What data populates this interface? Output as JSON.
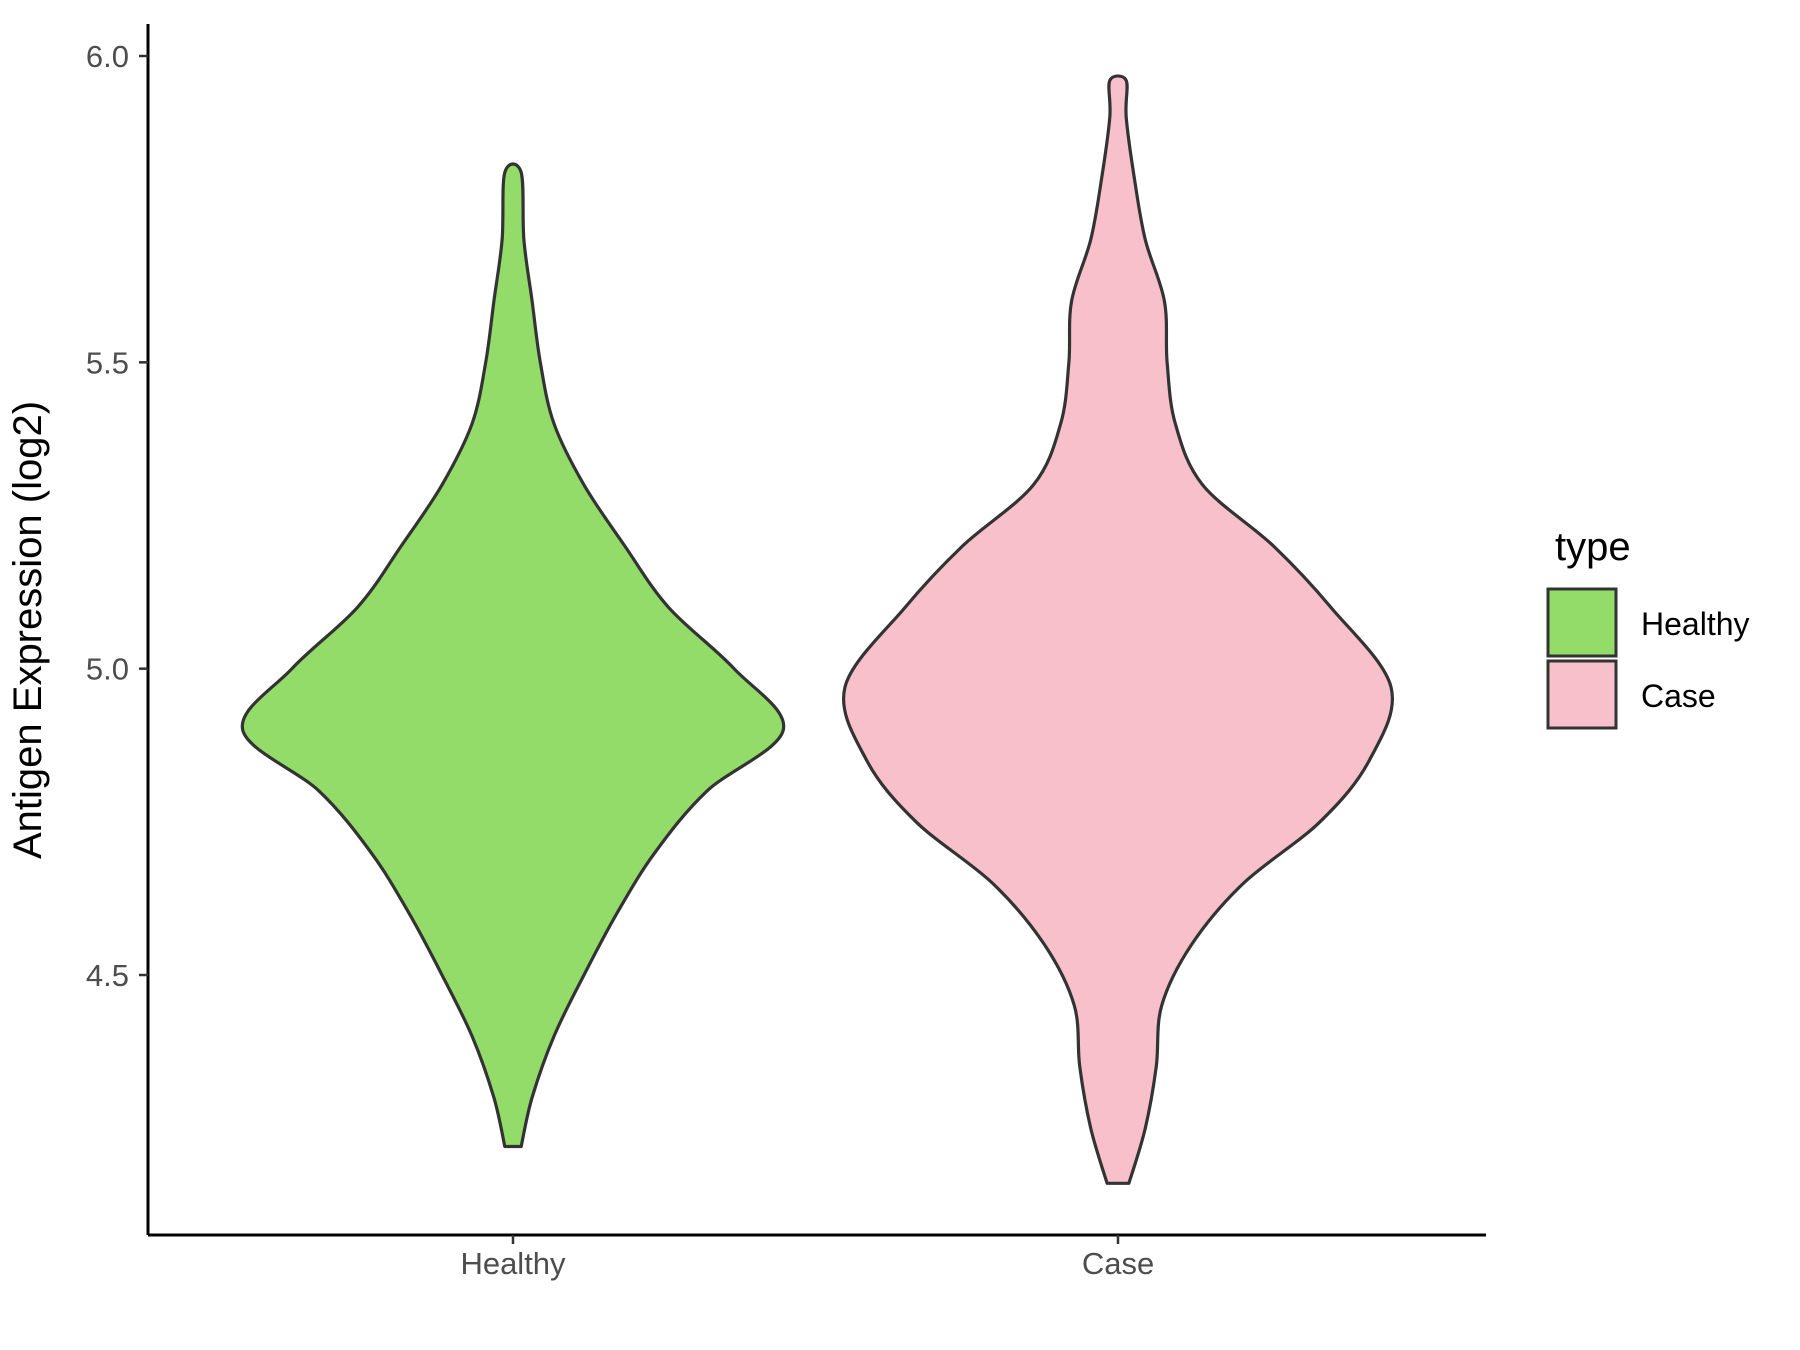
{
  "chart_data": {
    "type": "violin",
    "title": "",
    "xlabel": "",
    "ylabel": "Antigen Expression (log2)",
    "categories": [
      "Healthy",
      "Case"
    ],
    "yticks": [
      "4.5",
      "5.0",
      "5.5",
      "6.0"
    ],
    "ylim": [
      4.08,
      6.05
    ],
    "grid": false,
    "legend": {
      "title": "type",
      "position": "right",
      "entries": [
        "Healthy",
        "Case"
      ]
    },
    "series": [
      {
        "name": "Healthy",
        "color": "#93DC6A",
        "min": 4.22,
        "max": 5.81,
        "density_profile": [
          [
            4.22,
            0.03
          ],
          [
            4.3,
            0.07
          ],
          [
            4.4,
            0.15
          ],
          [
            4.5,
            0.26
          ],
          [
            4.6,
            0.38
          ],
          [
            4.7,
            0.52
          ],
          [
            4.8,
            0.71
          ],
          [
            4.9,
            0.99
          ],
          [
            5.0,
            0.81
          ],
          [
            5.1,
            0.57
          ],
          [
            5.2,
            0.41
          ],
          [
            5.3,
            0.26
          ],
          [
            5.4,
            0.15
          ],
          [
            5.5,
            0.1
          ],
          [
            5.6,
            0.07
          ],
          [
            5.7,
            0.04
          ],
          [
            5.81,
            0.03
          ]
        ]
      },
      {
        "name": "Case",
        "color": "#F7C0CB",
        "min": 4.16,
        "max": 5.96,
        "density_profile": [
          [
            4.16,
            0.04
          ],
          [
            4.25,
            0.1
          ],
          [
            4.35,
            0.14
          ],
          [
            4.45,
            0.16
          ],
          [
            4.55,
            0.27
          ],
          [
            4.65,
            0.46
          ],
          [
            4.75,
            0.74
          ],
          [
            4.85,
            0.92
          ],
          [
            4.97,
            1.0
          ],
          [
            5.1,
            0.78
          ],
          [
            5.2,
            0.57
          ],
          [
            5.3,
            0.31
          ],
          [
            5.4,
            0.21
          ],
          [
            5.5,
            0.18
          ],
          [
            5.6,
            0.17
          ],
          [
            5.7,
            0.1
          ],
          [
            5.8,
            0.06
          ],
          [
            5.9,
            0.03
          ],
          [
            5.96,
            0.03
          ]
        ]
      }
    ]
  }
}
